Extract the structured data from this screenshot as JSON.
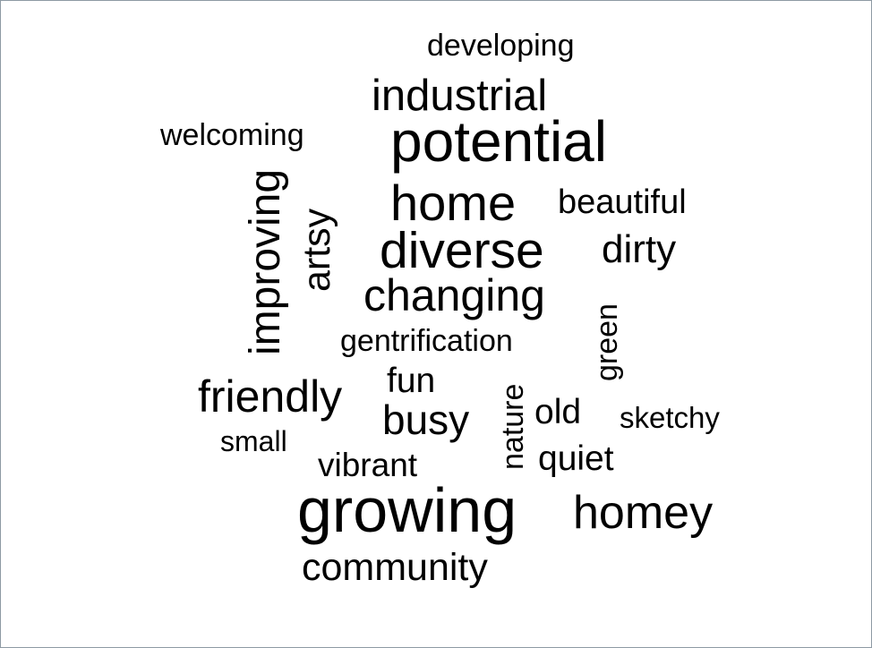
{
  "words": {
    "developing": "developing",
    "industrial": "industrial",
    "welcoming": "welcoming",
    "potential": "potential",
    "home": "home",
    "beautiful": "beautiful",
    "improving": "improving",
    "artsy": "artsy",
    "diverse": "diverse",
    "dirty": "dirty",
    "changing": "changing",
    "green": "green",
    "gentrification": "gentrification",
    "fun": "fun",
    "friendly": "friendly",
    "nature": "nature",
    "busy": "busy",
    "old": "old",
    "sketchy": "sketchy",
    "small": "small",
    "vibrant": "vibrant",
    "quiet": "quiet",
    "growing": "growing",
    "homey": "homey",
    "community": "community"
  },
  "colors": {
    "text": "#000000",
    "background": "#ffffff",
    "border": "#8e9aa4"
  }
}
